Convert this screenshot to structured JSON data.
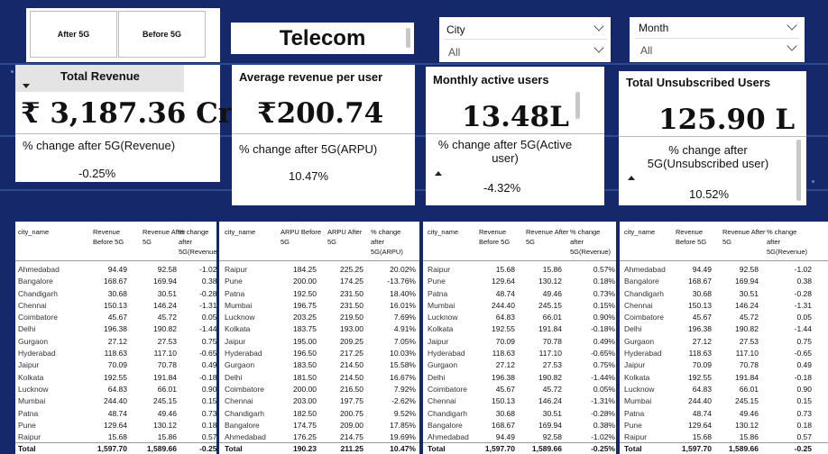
{
  "toggle": {
    "after_label": "After 5G",
    "before_label": "Before 5G"
  },
  "title": "Telecom",
  "filters": {
    "city": {
      "label": "City",
      "value": "All"
    },
    "month": {
      "label": "Month",
      "value": "All"
    }
  },
  "kpis": {
    "revenue": {
      "title": "Total Revenue",
      "value": "₹ 3,187.36 Cr",
      "pct_label": "% change after 5G(Revenue)",
      "pct_value": "-0.25%"
    },
    "arpu": {
      "title": "Average revenue per user",
      "value": "₹200.74",
      "pct_label": "% change after 5G(ARPU)",
      "pct_value": "10.47%"
    },
    "mau": {
      "title": "Monthly active users",
      "value": "13.48L",
      "pct_label": "% change after 5G(Active user)",
      "pct_value": "-4.32%"
    },
    "unsub": {
      "title": "Total Unsubscribed Users",
      "value": "125.90 L",
      "pct_label": "% change after 5G(Unsubscribed user)",
      "pct_value": "10.52%"
    }
  },
  "tables": [
    {
      "headers": [
        "city_name",
        "Revenue Before 5G",
        "Revenue After 5G",
        "% change after 5G(Revenue)"
      ],
      "rows": [
        [
          "Ahmedabad",
          "94.49",
          "92.58",
          "-1.02%"
        ],
        [
          "Bangalore",
          "168.67",
          "169.94",
          "0.38%"
        ],
        [
          "Chandigarh",
          "30.68",
          "30.51",
          "-0.28%"
        ],
        [
          "Chennai",
          "150.13",
          "146.24",
          "-1.31%"
        ],
        [
          "Coimbatore",
          "45.67",
          "45.72",
          "0.05%"
        ],
        [
          "Delhi",
          "196.38",
          "190.82",
          "-1.44%"
        ],
        [
          "Gurgaon",
          "27.12",
          "27.53",
          "0.75%"
        ],
        [
          "Hyderabad",
          "118.63",
          "117.10",
          "-0.65%"
        ],
        [
          "Jaipur",
          "70.09",
          "70.78",
          "0.49%"
        ],
        [
          "Kolkata",
          "192.55",
          "191.84",
          "-0.18%"
        ],
        [
          "Lucknow",
          "64.83",
          "66.01",
          "0.90%"
        ],
        [
          "Mumbai",
          "244.40",
          "245.15",
          "0.15%"
        ],
        [
          "Patna",
          "48.74",
          "49.46",
          "0.73%"
        ],
        [
          "Pune",
          "129.64",
          "130.12",
          "0.18%"
        ],
        [
          "Raipur",
          "15.68",
          "15.86",
          "0.57%"
        ]
      ],
      "total": [
        "Total",
        "1,597.70",
        "1,589.66",
        "-0.25%"
      ]
    },
    {
      "headers": [
        "city_name",
        "ARPU Before 5G",
        "ARPU After 5G",
        "% change after 5G(ARPU)"
      ],
      "rows": [
        [
          "Raipur",
          "184.25",
          "225.25",
          "20.02%"
        ],
        [
          "Pune",
          "200.00",
          "174.25",
          "-13.76%"
        ],
        [
          "Patna",
          "192.50",
          "231.50",
          "18.40%"
        ],
        [
          "Mumbai",
          "196.75",
          "231.50",
          "16.01%"
        ],
        [
          "Lucknow",
          "203.25",
          "219.50",
          "7.69%"
        ],
        [
          "Kolkata",
          "183.75",
          "193.00",
          "4.91%"
        ],
        [
          "Jaipur",
          "195.00",
          "209.25",
          "7.05%"
        ],
        [
          "Hyderabad",
          "196.50",
          "217.25",
          "10.03%"
        ],
        [
          "Gurgaon",
          "183.50",
          "214.50",
          "15.58%"
        ],
        [
          "Delhi",
          "181.50",
          "214.50",
          "16.67%"
        ],
        [
          "Coimbatore",
          "200.00",
          "216.50",
          "7.92%"
        ],
        [
          "Chennai",
          "203.00",
          "197.75",
          "-2.62%"
        ],
        [
          "Chandigarh",
          "182.50",
          "200.75",
          "9.52%"
        ],
        [
          "Bangalore",
          "174.75",
          "209.00",
          "17.85%"
        ],
        [
          "Ahmedabad",
          "176.25",
          "214.75",
          "19.69%"
        ]
      ],
      "total": [
        "Total",
        "190.23",
        "211.25",
        "10.47%"
      ]
    },
    {
      "headers": [
        "city_name",
        "Revenue Before 5G",
        "Revenue After 5G",
        "% change after 5G(Revenue)"
      ],
      "rows": [
        [
          "Raipur",
          "15.68",
          "15.86",
          "0.57%"
        ],
        [
          "Pune",
          "129.64",
          "130.12",
          "0.18%"
        ],
        [
          "Patna",
          "48.74",
          "49.46",
          "0.73%"
        ],
        [
          "Mumbai",
          "244.40",
          "245.15",
          "0.15%"
        ],
        [
          "Lucknow",
          "64.83",
          "66.01",
          "0.90%"
        ],
        [
          "Kolkata",
          "192.55",
          "191.84",
          "-0.18%"
        ],
        [
          "Jaipur",
          "70.09",
          "70.78",
          "0.49%"
        ],
        [
          "Hyderabad",
          "118.63",
          "117.10",
          "-0.65%"
        ],
        [
          "Gurgaon",
          "27.12",
          "27.53",
          "0.75%"
        ],
        [
          "Delhi",
          "196.38",
          "190.82",
          "-1.44%"
        ],
        [
          "Coimbatore",
          "45.67",
          "45.72",
          "0.05%"
        ],
        [
          "Chennai",
          "150.13",
          "146.24",
          "-1.31%"
        ],
        [
          "Chandigarh",
          "30.68",
          "30.51",
          "-0.28%"
        ],
        [
          "Bangalore",
          "168.67",
          "169.94",
          "0.38%"
        ],
        [
          "Ahmedabad",
          "94.49",
          "92.58",
          "-1.02%"
        ]
      ],
      "total": [
        "Total",
        "1,597.70",
        "1,589.66",
        "-0.25%"
      ]
    },
    {
      "headers": [
        "city_name",
        "Revenue Before 5G",
        "Revenue After 5G",
        "% change after 5G(Revenue)"
      ],
      "rows": [
        [
          "Ahmedabad",
          "94.49",
          "92.58",
          "-1.02"
        ],
        [
          "Bangalore",
          "168.67",
          "169.94",
          "0.38"
        ],
        [
          "Chandigarh",
          "30.68",
          "30.51",
          "-0.28"
        ],
        [
          "Chennai",
          "150.13",
          "146.24",
          "-1.31"
        ],
        [
          "Coimbatore",
          "45.67",
          "45.72",
          "0.05"
        ],
        [
          "Delhi",
          "196.38",
          "190.82",
          "-1.44"
        ],
        [
          "Gurgaon",
          "27.12",
          "27.53",
          "0.75"
        ],
        [
          "Hyderabad",
          "118.63",
          "117.10",
          "-0.65"
        ],
        [
          "Jaipur",
          "70.09",
          "70.78",
          "0.49"
        ],
        [
          "Kolkata",
          "192.55",
          "191.84",
          "-0.18"
        ],
        [
          "Lucknow",
          "64.83",
          "66.01",
          "0.90"
        ],
        [
          "Mumbai",
          "244.40",
          "245.15",
          "0.15"
        ],
        [
          "Patna",
          "48.74",
          "49.46",
          "0.73"
        ],
        [
          "Pune",
          "129.64",
          "130.12",
          "0.18"
        ],
        [
          "Raipur",
          "15.68",
          "15.86",
          "0.57"
        ]
      ],
      "total": [
        "Total",
        "1,597.70",
        "1,589.66",
        "-0.25"
      ]
    }
  ]
}
